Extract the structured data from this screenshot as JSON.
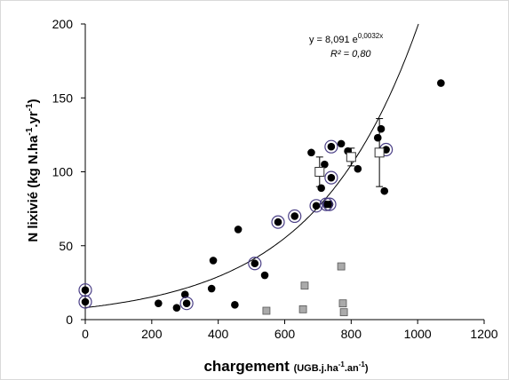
{
  "chart_data": {
    "type": "scatter",
    "xlim": [
      0,
      1200
    ],
    "ylim": [
      0,
      200
    ],
    "x_ticks": [
      "0",
      "200",
      "400",
      "600",
      "800",
      "1000",
      "1200"
    ],
    "y_ticks": [
      "0",
      "50",
      "100",
      "150",
      "200"
    ],
    "xlabel": {
      "main": "chargement",
      "unit": "(UGB.j.ha",
      "sup1": "-1",
      "mid": ".an",
      "sup2": "-1",
      "end": ")"
    },
    "ylabel": {
      "main": "N lixivié (kg N.ha",
      "sup1": "-1",
      "mid": ".yr",
      "sup2": "-1",
      "end": ")"
    },
    "equation": {
      "prefix": "y = 8,091 e",
      "exponent": "0,0032x"
    },
    "r2": {
      "label": "R²",
      "value": " = 0,80"
    },
    "fit": {
      "a": 8.091,
      "b": 0.0032
    },
    "grid": false,
    "series": [
      {
        "marker": "filled-circle",
        "color": "#000000",
        "points": [
          [
            0,
            20
          ],
          [
            0,
            12
          ],
          [
            220,
            11
          ],
          [
            275,
            8
          ],
          [
            300,
            17
          ],
          [
            305,
            11
          ],
          [
            380,
            21
          ],
          [
            385,
            40
          ],
          [
            450,
            10
          ],
          [
            460,
            61
          ],
          [
            510,
            38
          ],
          [
            540,
            30
          ],
          [
            580,
            66
          ],
          [
            630,
            70
          ],
          [
            680,
            113
          ],
          [
            695,
            77
          ],
          [
            710,
            89
          ],
          [
            720,
            105
          ],
          [
            725,
            78
          ],
          [
            735,
            78
          ],
          [
            740,
            117
          ],
          [
            740,
            96
          ],
          [
            770,
            119
          ],
          [
            790,
            114
          ],
          [
            820,
            102
          ],
          [
            880,
            123
          ],
          [
            890,
            129
          ],
          [
            900,
            87
          ],
          [
            905,
            115
          ],
          [
            1070,
            160
          ]
        ]
      },
      {
        "marker": "ringed-circle",
        "color": "#4a3f86",
        "points": [
          [
            0,
            20
          ],
          [
            0,
            12
          ],
          [
            305,
            11
          ],
          [
            510,
            38
          ],
          [
            580,
            66
          ],
          [
            630,
            70
          ],
          [
            695,
            77
          ],
          [
            725,
            78
          ],
          [
            735,
            78
          ],
          [
            740,
            117
          ],
          [
            740,
            96
          ],
          [
            905,
            115
          ]
        ]
      },
      {
        "marker": "gray-square",
        "color": "#aaaaaa",
        "points": [
          [
            545,
            6
          ],
          [
            655,
            7
          ],
          [
            660,
            23
          ],
          [
            770,
            36
          ],
          [
            775,
            11
          ],
          [
            778,
            5
          ]
        ]
      },
      {
        "marker": "open-square-errorbar",
        "color": "#ffffff",
        "points": [
          {
            "x": 705,
            "y": 100,
            "lo": 90,
            "hi": 110
          },
          {
            "x": 800,
            "y": 110,
            "lo": 104,
            "hi": 116
          },
          {
            "x": 885,
            "y": 113,
            "lo": 90,
            "hi": 136
          }
        ]
      }
    ]
  }
}
